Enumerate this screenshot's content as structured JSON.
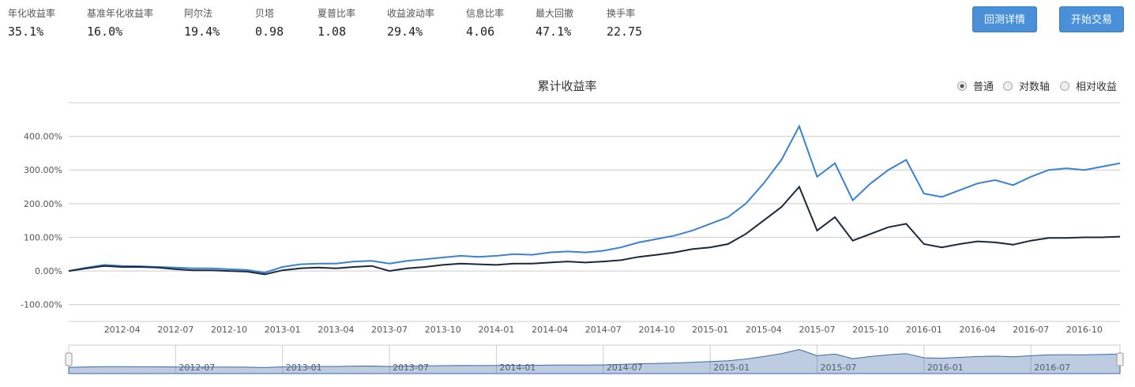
{
  "stats": [
    {
      "label": "年化收益率",
      "value": "35.1%"
    },
    {
      "label": "基准年化收益率",
      "value": "16.0%"
    },
    {
      "label": "阿尔法",
      "value": "19.4%"
    },
    {
      "label": "贝塔",
      "value": "0.98"
    },
    {
      "label": "夏普比率",
      "value": "1.08"
    },
    {
      "label": "收益波动率",
      "value": "29.4%"
    },
    {
      "label": "信息比率",
      "value": "4.06"
    },
    {
      "label": "最大回撤",
      "value": "47.1%"
    },
    {
      "label": "换手率",
      "value": "22.75"
    }
  ],
  "buttons": [
    "回测详情",
    "开始交易"
  ],
  "controls": [
    "普通",
    "对数轴",
    "相对收益"
  ],
  "chart_data": {
    "type": "line",
    "title": "累计收益率",
    "x": [
      "2012-01",
      "2012-02",
      "2012-03",
      "2012-04",
      "2012-05",
      "2012-06",
      "2012-07",
      "2012-08",
      "2012-09",
      "2012-10",
      "2012-11",
      "2012-12",
      "2013-01",
      "2013-02",
      "2013-03",
      "2013-04",
      "2013-05",
      "2013-06",
      "2013-07",
      "2013-08",
      "2013-09",
      "2013-10",
      "2013-11",
      "2013-12",
      "2014-01",
      "2014-02",
      "2014-03",
      "2014-04",
      "2014-05",
      "2014-06",
      "2014-07",
      "2014-08",
      "2014-09",
      "2014-10",
      "2014-11",
      "2014-12",
      "2015-01",
      "2015-02",
      "2015-03",
      "2015-04",
      "2015-05",
      "2015-06",
      "2015-07",
      "2015-08",
      "2015-09",
      "2015-10",
      "2015-11",
      "2015-12",
      "2016-01",
      "2016-02",
      "2016-03",
      "2016-04",
      "2016-05",
      "2016-06",
      "2016-07",
      "2016-08",
      "2016-09",
      "2016-10",
      "2016-11",
      "2016-12"
    ],
    "series": [
      {
        "color": "#3a82d0",
        "values": [
          0,
          10,
          18,
          15,
          14,
          12,
          10,
          8,
          8,
          5,
          3,
          -5,
          12,
          20,
          22,
          22,
          28,
          30,
          22,
          30,
          35,
          40,
          45,
          42,
          45,
          50,
          48,
          55,
          58,
          55,
          60,
          70,
          85,
          95,
          105,
          120,
          140,
          160,
          200,
          260,
          330,
          430,
          280,
          320,
          210,
          260,
          300,
          330,
          230,
          220,
          240,
          260,
          270,
          255,
          280,
          300,
          305,
          300,
          310,
          320
        ]
      },
      {
        "color": "#1a2a3c",
        "values": [
          0,
          8,
          15,
          12,
          12,
          10,
          5,
          2,
          2,
          0,
          -2,
          -10,
          2,
          8,
          10,
          8,
          12,
          15,
          0,
          8,
          12,
          18,
          22,
          20,
          18,
          22,
          22,
          25,
          28,
          25,
          28,
          32,
          42,
          48,
          55,
          65,
          70,
          80,
          110,
          150,
          190,
          250,
          120,
          160,
          90,
          110,
          130,
          140,
          80,
          70,
          80,
          88,
          85,
          78,
          90,
          98,
          98,
          100,
          100,
          102
        ]
      }
    ],
    "ylim": [
      -150,
      500
    ],
    "yticks": [
      {
        "value": -100,
        "label": "-100.00%"
      },
      {
        "value": 0,
        "label": "0.00%"
      },
      {
        "value": 100,
        "label": "100.00%"
      },
      {
        "value": 200,
        "label": "200.00%"
      },
      {
        "value": 300,
        "label": "300.00%"
      },
      {
        "value": 400,
        "label": "400.00%"
      }
    ],
    "xticks": [
      "2012-04",
      "2012-07",
      "2012-10",
      "2013-01",
      "2013-04",
      "2013-07",
      "2013-10",
      "2014-01",
      "2014-04",
      "2014-07",
      "2014-10",
      "2015-01",
      "2015-04",
      "2015-07",
      "2015-10",
      "2016-01",
      "2016-04",
      "2016-07",
      "2016-10"
    ],
    "navigator_xticks": [
      "2012-07",
      "2013-01",
      "2013-07",
      "2014-01",
      "2014-07",
      "2015-01",
      "2015-07",
      "2016-01",
      "2016-07"
    ],
    "grid": true
  }
}
